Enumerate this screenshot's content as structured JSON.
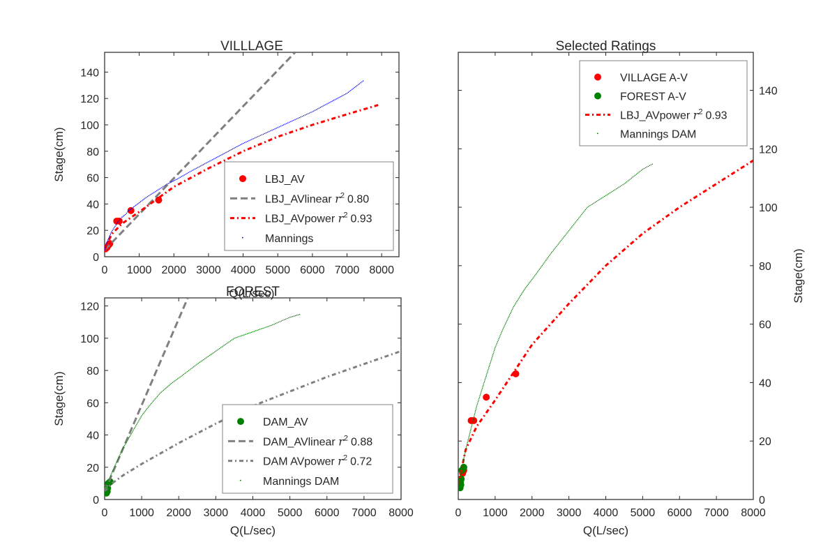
{
  "chart_data": [
    {
      "id": "village",
      "type": "scatter",
      "title": "VILLLAGE",
      "xlabel": "Q(L/sec)",
      "ylabel": "Stage(cm)",
      "xlim": [
        0,
        8500
      ],
      "ylim": [
        0,
        155
      ],
      "xticks": [
        0,
        1000,
        2000,
        3000,
        4000,
        5000,
        6000,
        7000,
        8000
      ],
      "yticks": [
        0,
        20,
        40,
        60,
        80,
        100,
        120,
        140
      ],
      "legend_position": "lower-right",
      "series": [
        {
          "name": "LBJ_AV",
          "kind": "points",
          "color": "#ff0000",
          "x": [
            25,
            70,
            120,
            150,
            350,
            420,
            760,
            1560
          ],
          "y": [
            6,
            7,
            9,
            10,
            27,
            27,
            35,
            43
          ]
        },
        {
          "name": "LBJ_AVlinear $r^2$ 0.80",
          "label_main": "LBJ_AVlinear ",
          "label_r2": "0.80",
          "kind": "dashed",
          "color": "#808080",
          "x": [
            0,
            5500
          ],
          "y": [
            5,
            155
          ]
        },
        {
          "name": "LBJ_AVpower $r^2$ 0.93",
          "label_main": "LBJ_AVpower ",
          "label_r2": "0.93",
          "kind": "dashdot",
          "color": "#ff0000",
          "x": [
            0,
            200,
            500,
            1000,
            2000,
            3000,
            4000,
            5000,
            6000,
            7000,
            7900
          ],
          "y": [
            5,
            17,
            25,
            34,
            53,
            67,
            80,
            91,
            100,
            108,
            115
          ]
        },
        {
          "name": "Mannings",
          "kind": "dots",
          "color": "#0000ff",
          "x": [
            0,
            50,
            100,
            200,
            300,
            400,
            500,
            600,
            700,
            800,
            1000,
            1200,
            1500,
            1800,
            2100,
            2500,
            3000,
            3500,
            4000,
            4500,
            5000,
            5500,
            6000,
            6500,
            7000,
            7500
          ],
          "y": [
            5,
            10,
            13,
            19,
            23,
            27,
            30,
            32,
            35,
            37,
            41,
            45,
            50,
            55,
            59,
            65,
            72,
            79,
            86,
            92,
            98,
            104,
            110,
            117,
            124,
            134
          ]
        }
      ]
    },
    {
      "id": "forest",
      "type": "scatter",
      "title": "FOREST",
      "xlabel": "Q(L/sec)",
      "ylabel": "Stage(cm)",
      "xlim": [
        0,
        8000
      ],
      "ylim": [
        0,
        125
      ],
      "xticks": [
        0,
        1000,
        2000,
        3000,
        4000,
        5000,
        6000,
        7000,
        8000
      ],
      "yticks": [
        0,
        20,
        40,
        60,
        80,
        100,
        120
      ],
      "legend_position": "lower-right",
      "series": [
        {
          "name": "DAM_AV",
          "kind": "points",
          "color": "#008000",
          "x": [
            50,
            60,
            70,
            80,
            100,
            150
          ],
          "y": [
            4,
            6,
            5,
            7,
            10,
            11
          ]
        },
        {
          "name": "DAM_AVlinear $r^2$ 0.88",
          "label_main": "DAM_AVlinear ",
          "label_r2": "0.88",
          "kind": "dashed",
          "color": "#808080",
          "x": [
            0,
            2300
          ],
          "y": [
            5,
            128
          ]
        },
        {
          "name": "DAM AVpower $r^2$ 0.72",
          "label_main": "DAM AVpower ",
          "label_r2": "0.72",
          "kind": "dashdot",
          "color": "#808080",
          "x": [
            0,
            200,
            500,
            1000,
            2000,
            3000,
            4000,
            5000,
            6000,
            7000,
            8000
          ],
          "y": [
            5,
            10,
            15,
            22,
            35,
            47,
            58,
            67,
            76,
            84,
            92
          ]
        },
        {
          "name": "Mannings DAM",
          "kind": "dots",
          "color": "#008000",
          "x": [
            0,
            50,
            100,
            200,
            300,
            400,
            500,
            600,
            700,
            800,
            1000,
            1200,
            1500,
            1800,
            2100,
            2500,
            3000,
            3500,
            4000,
            4500,
            5000,
            5300
          ],
          "y": [
            3,
            8,
            11,
            17,
            22,
            27,
            32,
            36,
            40,
            44,
            52,
            58,
            66,
            72,
            77,
            84,
            92,
            100,
            104,
            108,
            113,
            115
          ]
        }
      ]
    },
    {
      "id": "selected",
      "type": "scatter",
      "title": "Selected Ratings",
      "xlabel": "Q(L/sec)",
      "ylabel": "Stage(cm)",
      "xlim": [
        0,
        8000
      ],
      "ylim": [
        0,
        153
      ],
      "xticks": [
        0,
        1000,
        2000,
        3000,
        4000,
        5000,
        6000,
        7000,
        8000
      ],
      "yticks": [
        0,
        20,
        40,
        60,
        80,
        100,
        120,
        140
      ],
      "yaxis_side": "right",
      "legend_position": "upper-right",
      "series": [
        {
          "name": "VILLAGE A-V",
          "kind": "points",
          "color": "#ff0000",
          "x": [
            25,
            70,
            120,
            150,
            350,
            420,
            760,
            1560
          ],
          "y": [
            6,
            7,
            9,
            10,
            27,
            27,
            35,
            43
          ]
        },
        {
          "name": "FOREST A-V",
          "kind": "points",
          "color": "#008000",
          "x": [
            50,
            60,
            70,
            80,
            100,
            150
          ],
          "y": [
            4,
            6,
            5,
            7,
            10,
            11
          ]
        },
        {
          "name": "LBJ_AVpower $r^2$ 0.93",
          "label_main": "LBJ_AVpower ",
          "label_r2": "0.93",
          "kind": "dashdot",
          "color": "#ff0000",
          "x": [
            0,
            200,
            500,
            1000,
            2000,
            3000,
            4000,
            5000,
            6000,
            7000,
            8000
          ],
          "y": [
            5,
            17,
            25,
            34,
            53,
            67,
            80,
            91,
            100,
            108,
            116
          ]
        },
        {
          "name": "Mannings DAM",
          "kind": "dots",
          "color": "#008000",
          "x": [
            0,
            50,
            100,
            200,
            300,
            400,
            500,
            600,
            700,
            800,
            1000,
            1200,
            1500,
            1800,
            2100,
            2500,
            3000,
            3500,
            4000,
            4500,
            5000,
            5300
          ],
          "y": [
            3,
            8,
            11,
            17,
            22,
            27,
            32,
            36,
            40,
            44,
            52,
            58,
            66,
            72,
            77,
            84,
            92,
            100,
            104,
            108,
            113,
            115
          ]
        }
      ]
    }
  ]
}
